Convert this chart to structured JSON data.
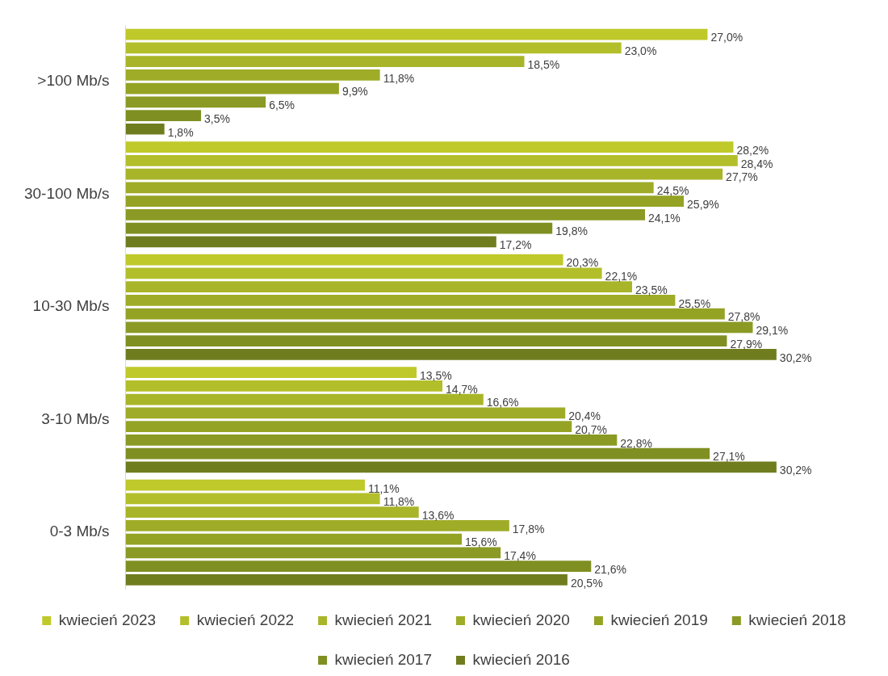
{
  "chart_data": {
    "type": "bar",
    "orientation": "horizontal",
    "categories": [
      ">100 Mb/s",
      "30-100 Mb/s",
      "10-30 Mb/s",
      "3-10 Mb/s",
      "0-3 Mb/s"
    ],
    "legend": "bottom",
    "grid": false,
    "tick_labels": "y",
    "series": [
      {
        "name": "kwiecień 2023",
        "color": "#bfc92a",
        "values": [
          27.0,
          28.2,
          20.3,
          13.5,
          11.1
        ],
        "value_labels": [
          "27,0%",
          "28,2%",
          "20,3%",
          "13,5%",
          "11,1%"
        ]
      },
      {
        "name": "kwiecień 2022",
        "color": "#b3bf2a",
        "values": [
          23.0,
          28.4,
          22.1,
          14.7,
          11.8
        ],
        "value_labels": [
          "23,0%",
          "28,4%",
          "22,1%",
          "14,7%",
          "11,8%"
        ]
      },
      {
        "name": "kwiecień 2021",
        "color": "#a9b529",
        "values": [
          18.5,
          27.7,
          23.5,
          16.6,
          13.6
        ],
        "value_labels": [
          "18,5%",
          "27,7%",
          "23,5%",
          "16,6%",
          "13,6%"
        ]
      },
      {
        "name": "kwiecień 2020",
        "color": "#9fac27",
        "values": [
          11.8,
          24.5,
          25.5,
          20.4,
          17.8
        ],
        "value_labels": [
          "11,8%",
          "24,5%",
          "25,5%",
          "20,4%",
          "17,8%"
        ]
      },
      {
        "name": "kwiecień 2019",
        "color": "#95a325",
        "values": [
          9.9,
          25.9,
          27.8,
          20.7,
          15.6
        ],
        "value_labels": [
          "9,9%",
          "25,9%",
          "27,8%",
          "20,7%",
          "15,6%"
        ]
      },
      {
        "name": "kwiecień 2018",
        "color": "#8b9a24",
        "values": [
          6.5,
          24.1,
          29.1,
          22.8,
          17.4
        ],
        "value_labels": [
          "6,5%",
          "24,1%",
          "29,1%",
          "22,8%",
          "17,4%"
        ]
      },
      {
        "name": "kwiecień 2017",
        "color": "#808f22",
        "values": [
          3.5,
          19.8,
          27.9,
          27.1,
          21.6
        ],
        "value_labels": [
          "3,5%",
          "19,8%",
          "27,9%",
          "27,1%",
          "21,6%"
        ]
      },
      {
        "name": "kwiecień 2016",
        "color": "#707d1e",
        "values": [
          1.8,
          17.2,
          30.2,
          30.2,
          20.5
        ],
        "value_labels": [
          "1,8%",
          "17,2%",
          "30,2%",
          "30,2%",
          "20,5%"
        ]
      }
    ]
  }
}
